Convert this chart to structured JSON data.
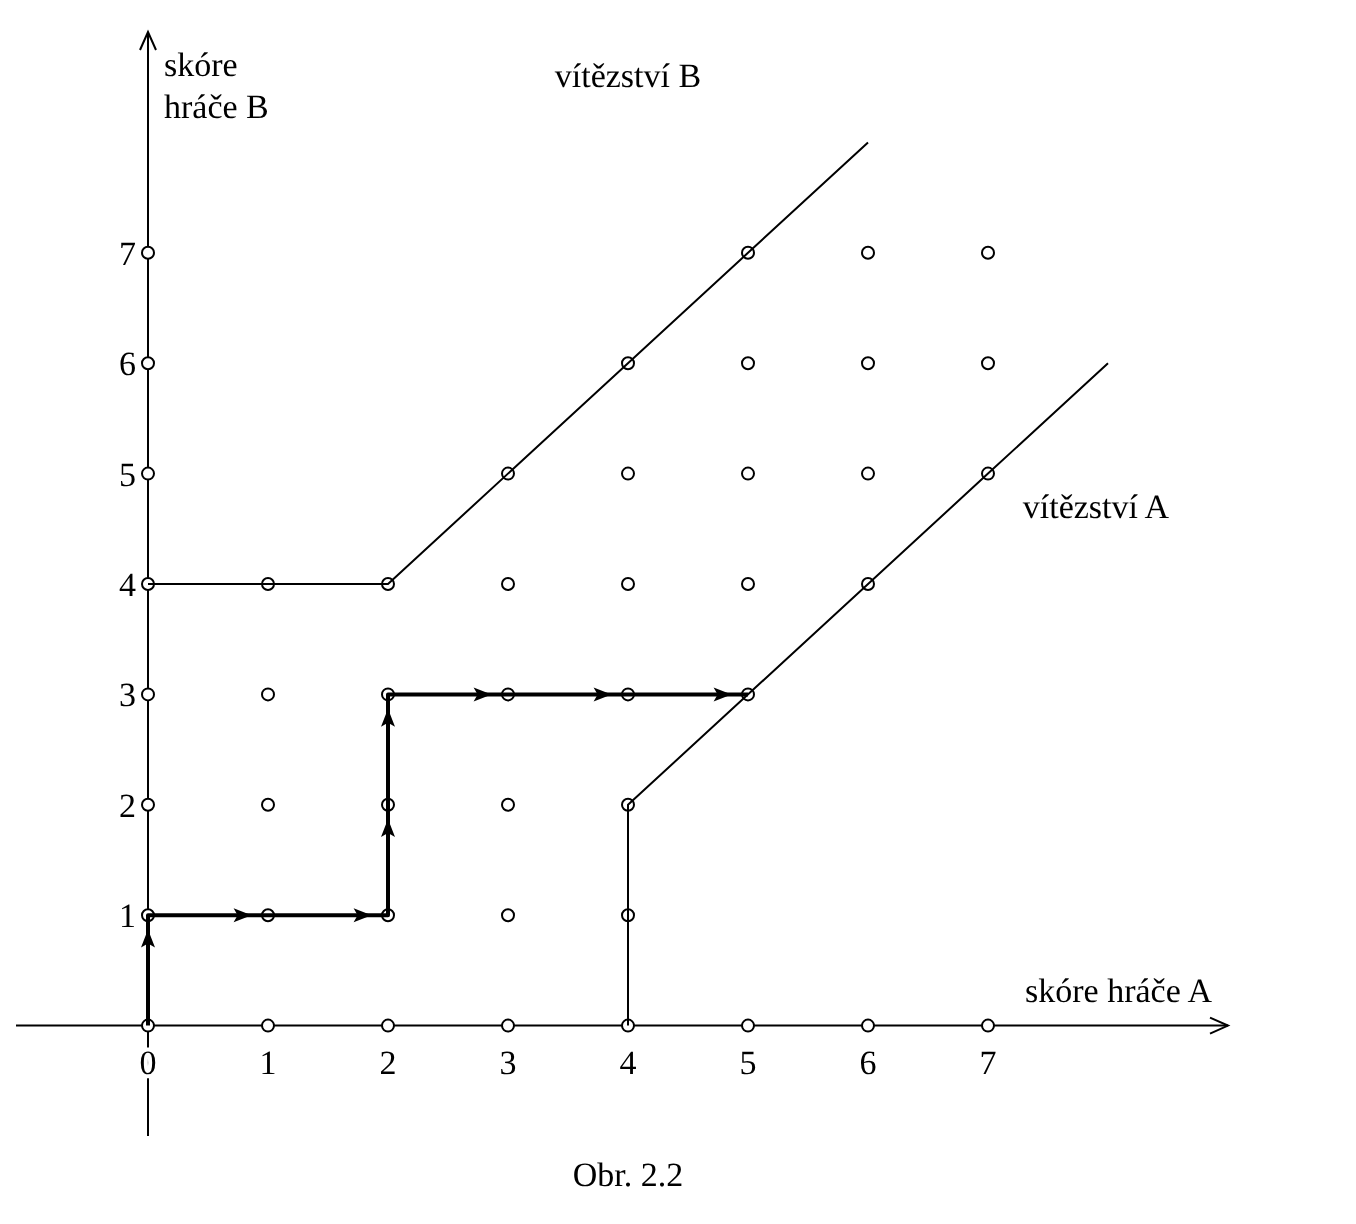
{
  "chart_data": {
    "type": "scatter",
    "xlabel": "skóre hráče A",
    "ylabel": "skóre\nhráče B",
    "xlim": [
      -1.1,
      9
    ],
    "ylim": [
      -1,
      9
    ],
    "xticks": [
      0,
      1,
      2,
      3,
      4,
      5,
      6,
      7
    ],
    "yticks": [
      1,
      2,
      3,
      4,
      5,
      6,
      7
    ],
    "grid": false,
    "series": [
      {
        "color": "#000000",
        "marker": "circle",
        "x": [
          0,
          0,
          0,
          0,
          0,
          0,
          0,
          0,
          1,
          1,
          1,
          1,
          1,
          2,
          2,
          2,
          2,
          2,
          3,
          3,
          3,
          3,
          3,
          3,
          4,
          4,
          4,
          4,
          4,
          4,
          4,
          5,
          5,
          5,
          5,
          5,
          5,
          6,
          6,
          6,
          6,
          6,
          7,
          7,
          7,
          7
        ],
        "values": [
          0,
          1,
          2,
          3,
          4,
          5,
          6,
          7,
          0,
          1,
          2,
          3,
          4,
          0,
          1,
          2,
          3,
          4,
          0,
          1,
          2,
          3,
          4,
          5,
          0,
          1,
          2,
          3,
          4,
          5,
          6,
          0,
          3,
          4,
          5,
          6,
          7,
          0,
          4,
          5,
          6,
          7,
          0,
          5,
          6,
          7
        ]
      },
      {
        "type": "line",
        "color": "#000000",
        "x": [
          0,
          2,
          5,
          6
        ],
        "values": [
          4,
          4,
          7,
          8
        ]
      },
      {
        "type": "line",
        "color": "#000000",
        "x": [
          4,
          4,
          7,
          8
        ],
        "values": [
          0,
          2,
          5,
          6
        ]
      },
      {
        "type": "line",
        "color": "#000000",
        "line_style": "solid",
        "x": [
          0,
          0,
          1,
          2,
          2,
          2,
          3,
          4,
          5
        ],
        "values": [
          0,
          1,
          1,
          1,
          2,
          3,
          3,
          3,
          3
        ]
      }
    ],
    "annotations": [
      "vítězství B",
      "vítězství A",
      "Obr. 2.2"
    ]
  }
}
